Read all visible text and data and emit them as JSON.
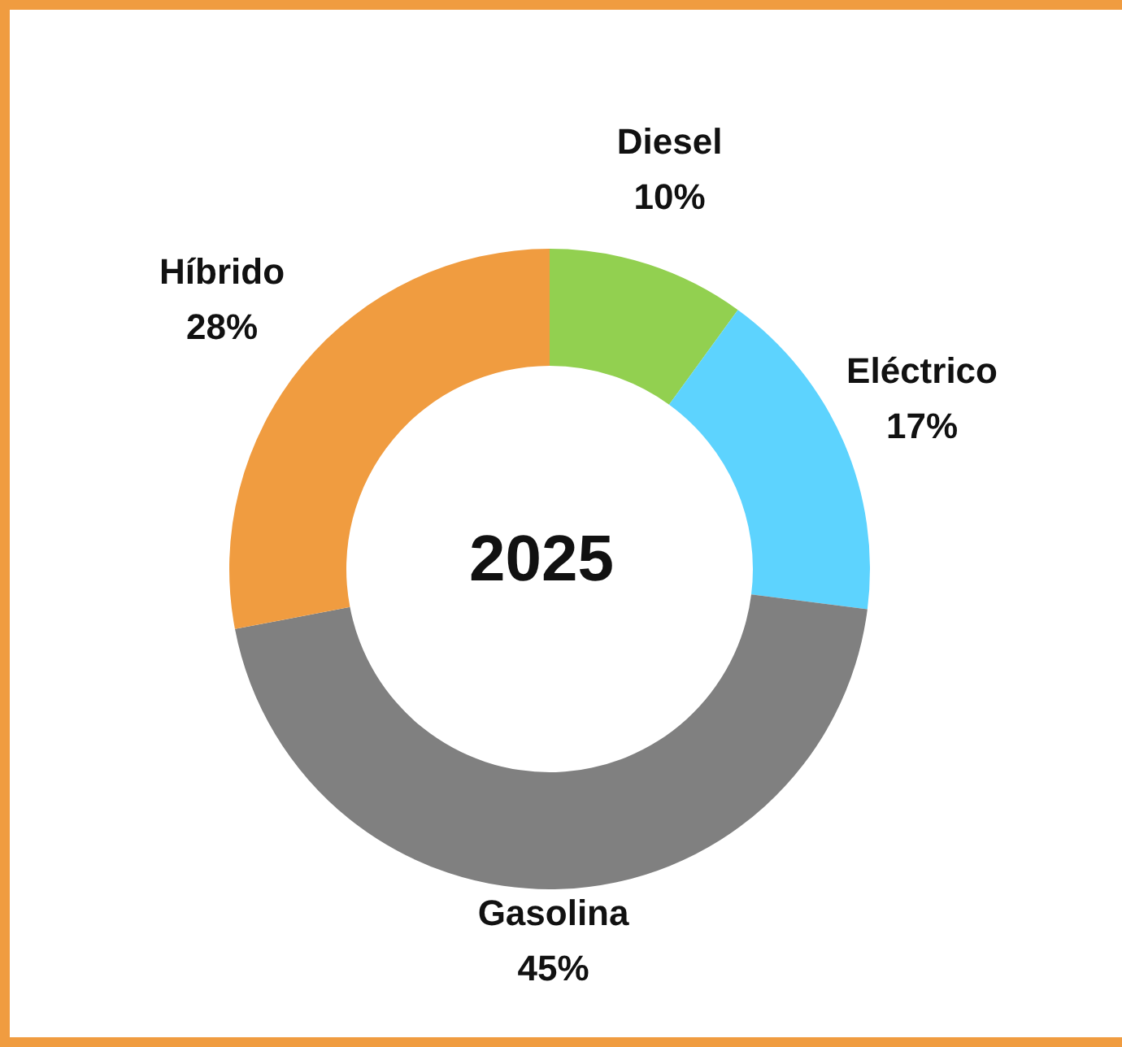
{
  "chart_data": {
    "type": "donut",
    "title": "2025",
    "categories": [
      "Diesel",
      "Eléctrico",
      "Gasolina",
      "Híbrido"
    ],
    "values": [
      10,
      17,
      45,
      28
    ],
    "value_labels": [
      "10%",
      "17%",
      "45%",
      "28%"
    ],
    "colors": [
      "#92d050",
      "#5dd3fe",
      "#808080",
      "#f09c40"
    ]
  }
}
